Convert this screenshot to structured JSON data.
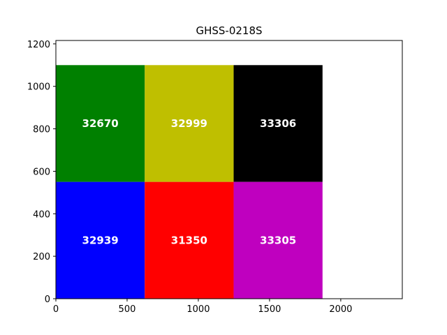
{
  "chart_data": {
    "type": "heatmap",
    "title": "GHSS-0218S",
    "xlabel": "",
    "ylabel": "",
    "xlim": [
      0,
      2432
    ],
    "ylim": [
      0,
      1216
    ],
    "xticks": [
      "0",
      "500",
      "1000",
      "1500",
      "2000"
    ],
    "yticks": [
      "0",
      "200",
      "400",
      "600",
      "800",
      "1000",
      "1200"
    ],
    "grid": false,
    "cells": [
      {
        "x0": 0,
        "x1": 624,
        "y0": 550,
        "y1": 1100,
        "value": "32670",
        "color": "#008000"
      },
      {
        "x0": 624,
        "x1": 1248,
        "y0": 550,
        "y1": 1100,
        "value": "32999",
        "color": "#bfbf00"
      },
      {
        "x0": 1248,
        "x1": 1872,
        "y0": 550,
        "y1": 1100,
        "value": "33306",
        "color": "#000000"
      },
      {
        "x0": 0,
        "x1": 624,
        "y0": 0,
        "y1": 550,
        "value": "32939",
        "color": "#0000ff"
      },
      {
        "x0": 624,
        "x1": 1248,
        "y0": 0,
        "y1": 550,
        "value": "31350",
        "color": "#ff0000"
      },
      {
        "x0": 1248,
        "x1": 1872,
        "y0": 0,
        "y1": 550,
        "value": "33305",
        "color": "#bf00bf"
      }
    ]
  }
}
